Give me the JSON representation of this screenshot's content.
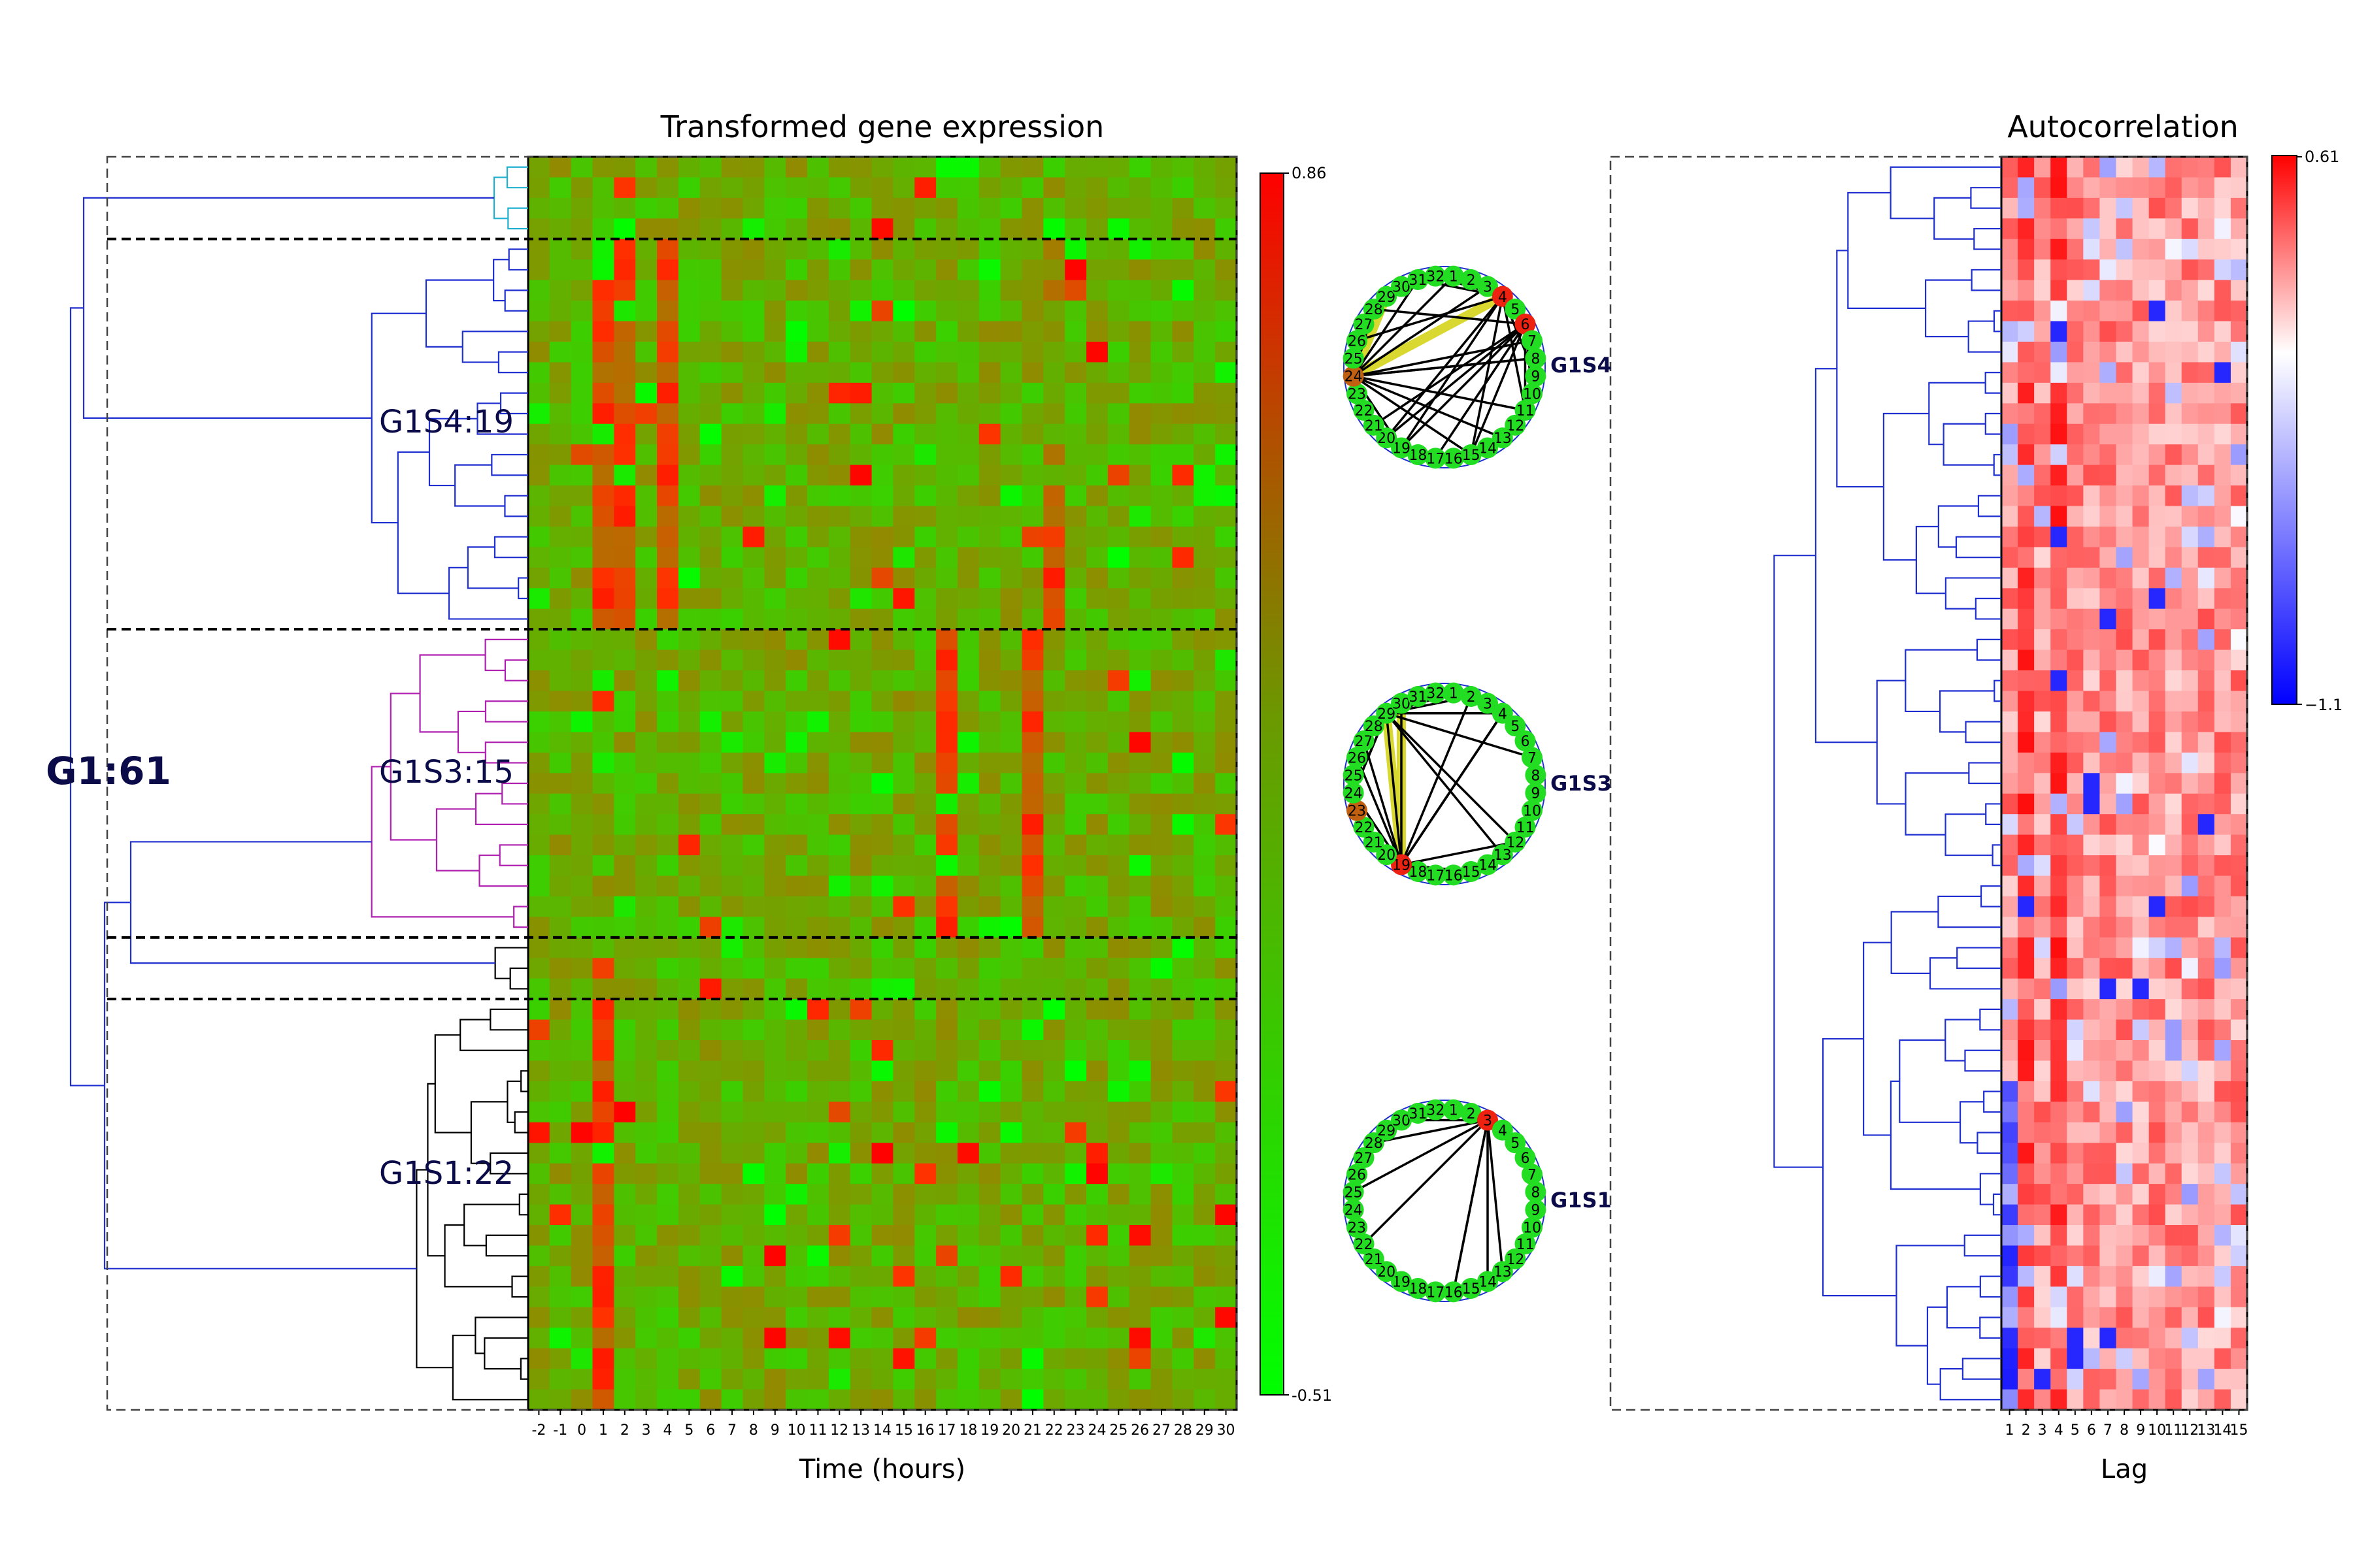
{
  "chart_data": [
    {
      "type": "heatmap",
      "title": "Transformed gene expression",
      "xlabel": "Time (hours)",
      "x_tick_labels": [
        "-2",
        "-1",
        "0",
        "1",
        "2",
        "3",
        "4",
        "5",
        "6",
        "7",
        "8",
        "9",
        "10",
        "11",
        "12",
        "13",
        "14",
        "15",
        "16",
        "17",
        "18",
        "19",
        "20",
        "21",
        "22",
        "23",
        "24",
        "25",
        "26",
        "27",
        "28",
        "29",
        "30"
      ],
      "colorbar": {
        "max_label": "0.86",
        "min_label": "-0.51",
        "vmax": 0.86,
        "vmin": -0.51,
        "colors": [
          "#00ff00",
          "#ff0000"
        ]
      },
      "row_count": 61,
      "clusters": [
        {
          "label": "G1S4:19",
          "rows": 19,
          "color": "#1f2fd0"
        },
        {
          "label": "G1S3:15",
          "rows": 15,
          "color": "#b020b0"
        },
        {
          "label": "G1S1:22",
          "rows": 22,
          "color": "#000000"
        }
      ],
      "group_label": "G1:61",
      "hot_columns": {
        "G1S4:19": [
          "1",
          "2",
          "4",
          "22"
        ],
        "G1S3:15": [
          "17",
          "21"
        ],
        "G1S1:22": [
          "1"
        ]
      }
    },
    {
      "type": "heatmap",
      "title": "Autocorrelation",
      "xlabel": "Lag",
      "x_tick_labels": [
        "1",
        "2",
        "3",
        "4",
        "5",
        "6",
        "7",
        "8",
        "9",
        "10",
        "11",
        "12",
        "13",
        "14",
        "15"
      ],
      "colorbar": {
        "max_label": "0.61",
        "min_label": "−1.1",
        "vmax": 0.61,
        "vmin": -1.1,
        "colors": [
          "#0000ff",
          "#ffffff",
          "#ff0000"
        ]
      },
      "row_count": 61
    }
  ],
  "circles": [
    {
      "label": "G1S4",
      "node_labels": [
        "1",
        "2",
        "3",
        "4",
        "5",
        "6",
        "7",
        "8",
        "9",
        "10",
        "11",
        "12",
        "13",
        "14",
        "15",
        "16",
        "17",
        "18",
        "19",
        "20",
        "21",
        "22",
        "23",
        "24",
        "25",
        "26",
        "27",
        "28",
        "29",
        "30",
        "31",
        "32"
      ]
    },
    {
      "label": "G1S3",
      "node_labels": [
        "1",
        "2",
        "3",
        "4",
        "5",
        "6",
        "7",
        "8",
        "9",
        "10",
        "11",
        "12",
        "13",
        "14",
        "15",
        "16",
        "17",
        "18",
        "19",
        "20",
        "21",
        "22",
        "23",
        "24",
        "25",
        "26",
        "27",
        "28",
        "29",
        "30",
        "31",
        "32"
      ]
    },
    {
      "label": "G1S1",
      "node_labels": [
        "1",
        "2",
        "3",
        "4",
        "5",
        "6",
        "7",
        "8",
        "9",
        "10",
        "11",
        "12",
        "13",
        "14",
        "15",
        "16",
        "17",
        "18",
        "19",
        "20",
        "21",
        "22",
        "23",
        "24",
        "25",
        "26",
        "27",
        "28",
        "29",
        "30",
        "31",
        "32"
      ]
    }
  ],
  "colors": {
    "tree_blue": "#1f2fd0",
    "tree_cyan": "#1fb0d0",
    "tree_purple": "#b020b0",
    "tree_black": "#000000",
    "node_green": "#22dd22",
    "node_red": "#ee2211",
    "highlight_yellow": "#d8d830"
  }
}
